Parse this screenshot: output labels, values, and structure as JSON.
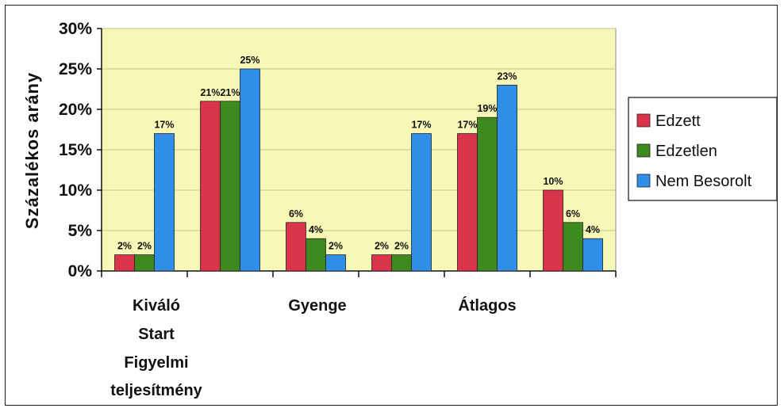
{
  "chart_data": {
    "type": "bar",
    "ylabel": "Százalékos arány",
    "ylim": [
      0,
      30
    ],
    "yticks": [
      "0%",
      "5%",
      "10%",
      "15%",
      "20%",
      "25%",
      "30%"
    ],
    "grid": true,
    "legend_position": "right",
    "categories": [
      "Kiváló",
      "Start",
      "Gyenge",
      "Figyelmi",
      "Átlagos",
      "teljesítmény"
    ],
    "x_labels": [
      {
        "text": "Kiváló"
      },
      {
        "text": "Start"
      },
      {
        "text": "Figyelmi"
      },
      {
        "text": "teljesítmény"
      },
      {
        "text": "Gyenge"
      },
      {
        "text": "Átlagos"
      }
    ],
    "series": [
      {
        "name": "Edzett",
        "color": "#d9344a",
        "values": [
          2,
          21,
          6,
          2,
          17,
          10
        ],
        "labels": [
          "2%",
          "21%",
          "6%",
          "2%",
          "17%",
          "10%"
        ]
      },
      {
        "name": "Edzetlen",
        "color": "#3f8a1f",
        "values": [
          2,
          21,
          4,
          2,
          19,
          6
        ],
        "labels": [
          "2%",
          "21%",
          "4%",
          "2%",
          "19%",
          "6%"
        ]
      },
      {
        "name": "Nem Besorolt",
        "color": "#2f8fe8",
        "values": [
          17,
          25,
          2,
          17,
          23,
          4
        ],
        "labels": [
          "17%",
          "25%",
          "2%",
          "17%",
          "23%",
          "4%"
        ]
      }
    ],
    "plot_background": "#f7f7b8",
    "gridline_color": "#c4c48a"
  }
}
